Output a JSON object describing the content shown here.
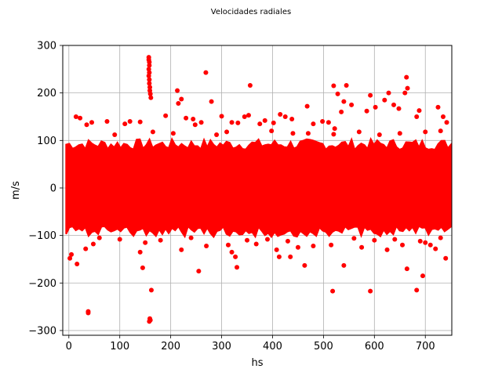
{
  "chart_data": {
    "type": "scatter",
    "title": "Velocidades radiales",
    "xlabel": "hs",
    "ylabel": "m/s",
    "xlim": [
      -12,
      752
    ],
    "ylim": [
      -310,
      300
    ],
    "xticks": [
      0,
      100,
      200,
      300,
      400,
      500,
      600,
      700
    ],
    "yticks": [
      -300,
      -200,
      -100,
      0,
      100,
      200,
      300
    ],
    "xtick_labels": [
      "0",
      "100",
      "200",
      "300",
      "400",
      "500",
      "600",
      "700"
    ],
    "ytick_labels": [
      "−300",
      "−200",
      "−100",
      "0",
      "100",
      "200",
      "300"
    ],
    "grid": true,
    "marker_color": "#ff0000",
    "x_range_of_data": [
      0,
      745
    ],
    "dense_band": {
      "lower": -90,
      "upper": 90
    },
    "series": [
      {
        "points": [
          [
            157,
            275
          ],
          [
            157,
            270
          ],
          [
            158,
            265
          ],
          [
            158,
            258
          ],
          [
            157,
            250
          ],
          [
            158,
            243
          ],
          [
            157,
            236
          ],
          [
            158,
            228
          ],
          [
            158,
            220
          ],
          [
            159,
            212
          ],
          [
            159,
            205
          ],
          [
            160,
            198
          ],
          [
            161,
            190
          ],
          [
            269,
            243
          ],
          [
            213,
            205
          ],
          [
            356,
            216
          ],
          [
            221,
            187
          ],
          [
            215,
            178
          ],
          [
            280,
            182
          ],
          [
            520,
            215
          ],
          [
            545,
            216
          ],
          [
            528,
            198
          ],
          [
            540,
            182
          ],
          [
            555,
            175
          ],
          [
            535,
            160
          ],
          [
            628,
            200
          ],
          [
            663,
            233
          ],
          [
            665,
            210
          ],
          [
            660,
            200
          ],
          [
            592,
            195
          ],
          [
            602,
            170
          ],
          [
            585,
            162
          ],
          [
            620,
            185
          ],
          [
            638,
            175
          ],
          [
            648,
            167
          ],
          [
            683,
            150
          ],
          [
            688,
            163
          ],
          [
            725,
            170
          ],
          [
            735,
            150
          ],
          [
            742,
            138
          ],
          [
            730,
            120
          ],
          [
            14,
            150
          ],
          [
            22,
            147
          ],
          [
            35,
            133
          ],
          [
            45,
            138
          ],
          [
            75,
            140
          ],
          [
            110,
            135
          ],
          [
            120,
            140
          ],
          [
            140,
            139
          ],
          [
            190,
            152
          ],
          [
            230,
            147
          ],
          [
            244,
            145
          ],
          [
            248,
            133
          ],
          [
            260,
            138
          ],
          [
            300,
            151
          ],
          [
            320,
            138
          ],
          [
            332,
            137
          ],
          [
            345,
            150
          ],
          [
            353,
            153
          ],
          [
            375,
            135
          ],
          [
            385,
            142
          ],
          [
            398,
            120
          ],
          [
            402,
            137
          ],
          [
            415,
            155
          ],
          [
            425,
            150
          ],
          [
            438,
            145
          ],
          [
            468,
            172
          ],
          [
            480,
            135
          ],
          [
            498,
            140
          ],
          [
            510,
            138
          ],
          [
            522,
            125
          ],
          [
            38,
            -263
          ],
          [
            38,
            -260
          ],
          [
            159,
            -275
          ],
          [
            160,
            -278
          ],
          [
            158,
            -281
          ],
          [
            162,
            -215
          ],
          [
            518,
            -217
          ],
          [
            592,
            -217
          ],
          [
            683,
            -215
          ],
          [
            695,
            -185
          ],
          [
            540,
            -163
          ],
          [
            664,
            -170
          ],
          [
            145,
            -168
          ],
          [
            255,
            -175
          ],
          [
            330,
            -167
          ],
          [
            463,
            -163
          ],
          [
            435,
            -145
          ],
          [
            327,
            -145
          ],
          [
            413,
            -145
          ],
          [
            2,
            -148
          ],
          [
            5,
            -140
          ],
          [
            16,
            -160
          ],
          [
            33,
            -128
          ],
          [
            48,
            -118
          ],
          [
            140,
            -135
          ],
          [
            150,
            -115
          ],
          [
            221,
            -130
          ],
          [
            270,
            -122
          ],
          [
            313,
            -120
          ],
          [
            320,
            -135
          ],
          [
            368,
            -118
          ],
          [
            408,
            -130
          ],
          [
            450,
            -125
          ],
          [
            480,
            -122
          ],
          [
            515,
            -120
          ],
          [
            575,
            -125
          ],
          [
            625,
            -130
          ],
          [
            655,
            -120
          ],
          [
            710,
            -120
          ],
          [
            720,
            -128
          ],
          [
            740,
            -148
          ],
          [
            700,
            -115
          ],
          [
            90,
            112
          ],
          [
            165,
            118
          ],
          [
            205,
            115
          ],
          [
            290,
            112
          ],
          [
            310,
            118
          ],
          [
            440,
            115
          ],
          [
            470,
            115
          ],
          [
            520,
            113
          ],
          [
            570,
            118
          ],
          [
            610,
            112
          ],
          [
            650,
            115
          ],
          [
            700,
            118
          ],
          [
            60,
            -105
          ],
          [
            100,
            -108
          ],
          [
            180,
            -110
          ],
          [
            240,
            -105
          ],
          [
            350,
            -110
          ],
          [
            390,
            -108
          ],
          [
            430,
            -112
          ],
          [
            560,
            -106
          ],
          [
            600,
            -110
          ],
          [
            640,
            -108
          ],
          [
            690,
            -112
          ],
          [
            730,
            -105
          ]
        ]
      }
    ]
  }
}
